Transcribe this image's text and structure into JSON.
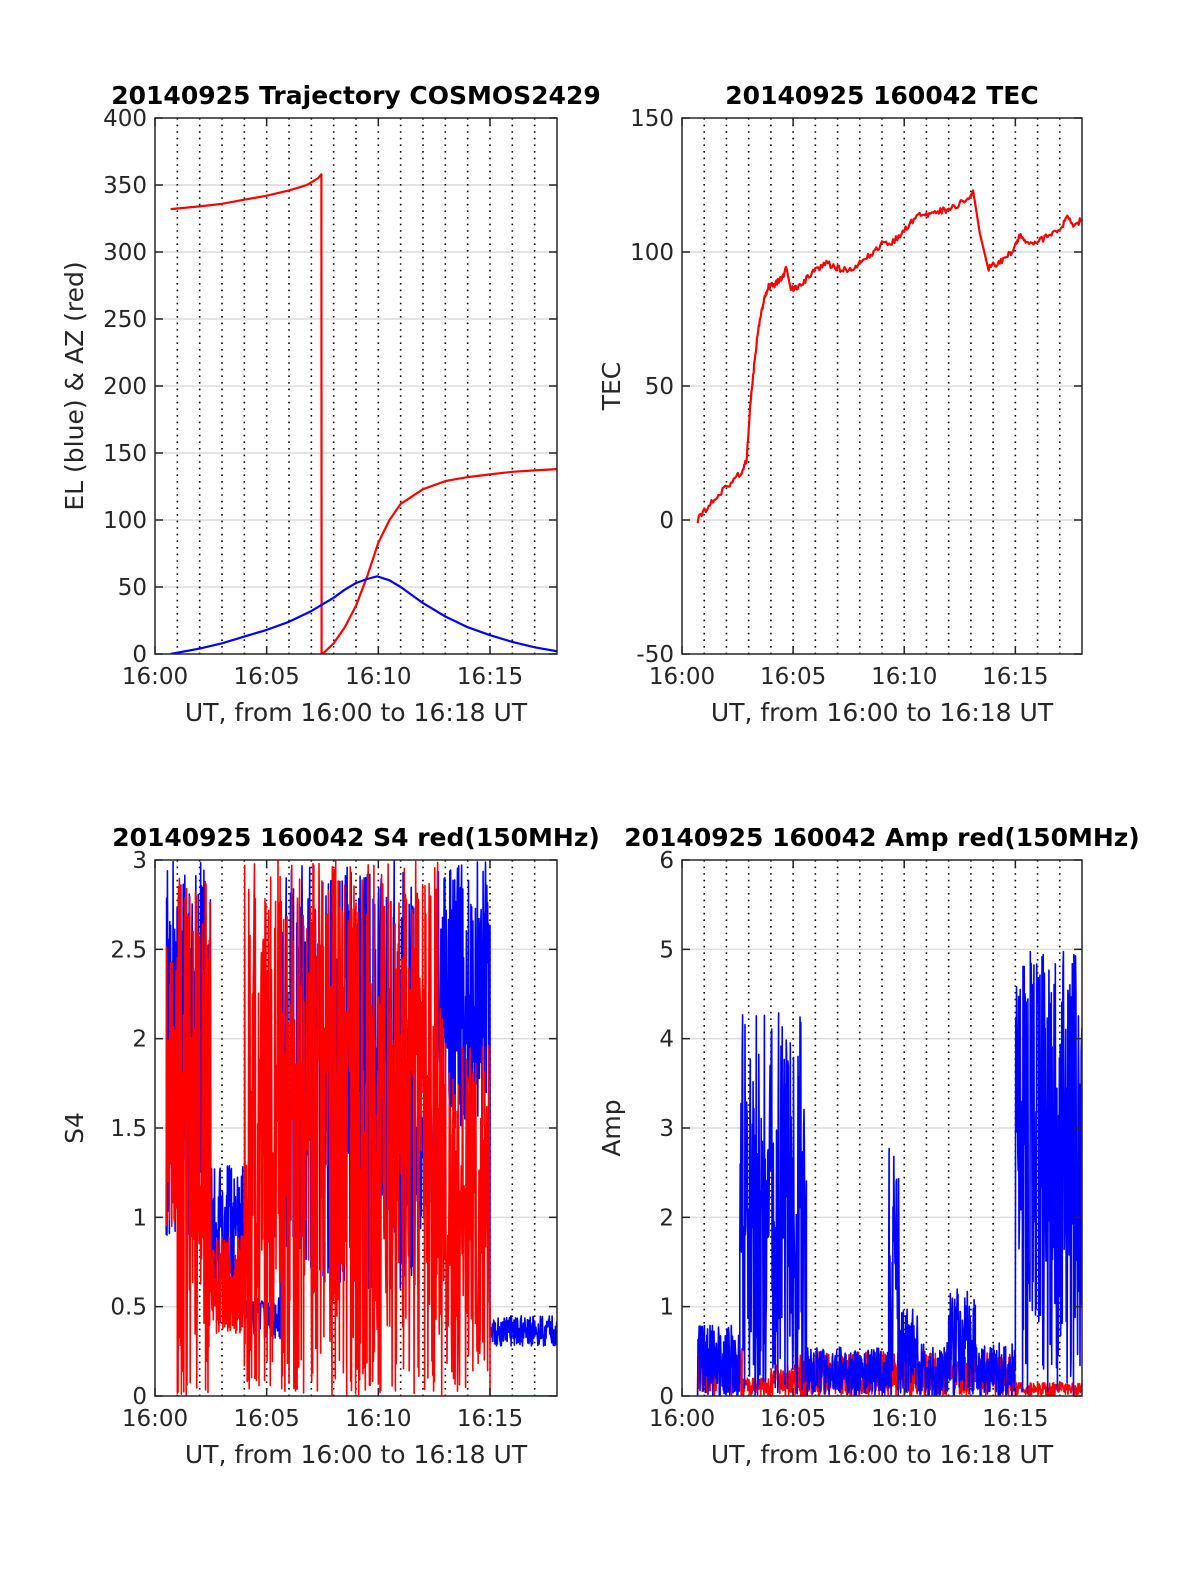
{
  "colors": {
    "red": "#ff0000",
    "blue": "#0000ff",
    "axis": "#262626",
    "grid": "#dcdcdc",
    "vgrid": "#000000"
  },
  "chart_data": [
    {
      "type": "line",
      "title": "20140925 Trajectory COSMOS2429",
      "xlabel": "UT, from 16:00 to 16:18 UT",
      "ylabel": "EL (blue) & AZ (red)",
      "xlim": [
        0,
        18
      ],
      "ylim": [
        0,
        400
      ],
      "xticks": [
        0,
        5,
        10,
        15
      ],
      "xticklabels": [
        "16:00",
        "16:05",
        "16:10",
        "16:15"
      ],
      "yticks": [
        0,
        50,
        100,
        150,
        200,
        250,
        300,
        350,
        400
      ],
      "yticklabels": [
        "0",
        "50",
        "100",
        "150",
        "200",
        "250",
        "300",
        "350",
        "400"
      ],
      "grid": true,
      "vgrid_minutes": [
        1,
        2,
        3,
        4,
        5,
        6,
        7,
        8,
        9,
        10,
        11,
        12,
        13,
        14,
        15,
        16,
        17
      ],
      "series": [
        {
          "color": "red",
          "x": [
            0.7,
            2,
            3,
            4,
            5,
            6,
            6.8,
            7.3,
            7.45,
            7.46,
            7.5,
            8,
            8.5,
            9,
            9.5,
            10,
            10.5,
            11,
            12,
            13,
            14,
            15,
            16,
            17,
            18
          ],
          "y": [
            332,
            334,
            336,
            339,
            342,
            346,
            350,
            355,
            358,
            0,
            0,
            8,
            20,
            36,
            58,
            83,
            100,
            112,
            123,
            129,
            132,
            134,
            136,
            137,
            138
          ]
        },
        {
          "color": "blue",
          "x": [
            0.7,
            2,
            3,
            4,
            5,
            6,
            7,
            8,
            8.5,
            9,
            9.5,
            9.95,
            10.5,
            11,
            11.5,
            12,
            13,
            14,
            15,
            16,
            17,
            18
          ],
          "y": [
            0,
            4,
            8,
            13,
            18,
            24,
            32,
            42,
            48,
            53,
            56,
            58,
            55,
            50,
            44,
            38,
            28,
            20,
            14,
            9,
            5,
            2
          ]
        }
      ]
    },
    {
      "type": "line",
      "title": "20140925 160042 TEC",
      "xlabel": "UT, from 16:00 to 16:18 UT",
      "ylabel": "TEC",
      "xlim": [
        0,
        18
      ],
      "ylim": [
        -50,
        150
      ],
      "xticks": [
        0,
        5,
        10,
        15
      ],
      "xticklabels": [
        "16:00",
        "16:05",
        "16:10",
        "16:15"
      ],
      "yticks": [
        -50,
        0,
        50,
        100,
        150
      ],
      "yticklabels": [
        "-50",
        "0",
        "50",
        "100",
        "150"
      ],
      "grid": true,
      "vgrid_minutes": [
        1,
        2,
        3,
        4,
        5,
        6,
        7,
        8,
        9,
        10,
        11,
        12,
        13,
        14,
        15,
        16,
        17
      ],
      "series": [
        {
          "color": "red",
          "noise": 1.2,
          "x": [
            0.7,
            1.2,
            1.7,
            2.2,
            2.7,
            2.9,
            3.1,
            3.3,
            3.5,
            3.7,
            3.9,
            4.2,
            4.5,
            4.7,
            4.9,
            5.2,
            5.6,
            6.0,
            6.5,
            7.0,
            7.5,
            8.0,
            8.5,
            9.0,
            9.5,
            10.0,
            10.5,
            11.0,
            11.5,
            12.0,
            12.5,
            12.9,
            13.1,
            13.4,
            13.8,
            14.2,
            14.6,
            15.0,
            15.2,
            15.5,
            16.0,
            16.5,
            17.0,
            17.3,
            17.6,
            18.0
          ],
          "y": [
            0,
            5,
            10,
            14,
            18,
            22,
            45,
            62,
            75,
            82,
            87,
            88,
            90,
            94,
            86,
            87,
            90,
            93,
            96,
            94,
            93,
            96,
            99,
            103,
            104,
            108,
            113,
            114,
            115,
            116,
            118,
            120,
            123,
            107,
            94,
            96,
            98,
            102,
            106,
            103,
            104,
            106,
            108,
            113,
            110,
            112
          ]
        }
      ]
    },
    {
      "type": "line",
      "title": "20140925 160042 S4 red(150MHz)",
      "xlabel": "UT, from 16:00 to 16:18 UT",
      "ylabel": "S4",
      "xlim": [
        0,
        18
      ],
      "ylim": [
        0,
        3
      ],
      "xticks": [
        0,
        5,
        10,
        15
      ],
      "xticklabels": [
        "16:00",
        "16:05",
        "16:10",
        "16:15"
      ],
      "yticks": [
        0,
        0.5,
        1,
        1.5,
        2,
        2.5,
        3
      ],
      "yticklabels": [
        "0",
        "0.5",
        "1",
        "1.5",
        "2",
        "2.5",
        "3"
      ],
      "grid": true,
      "vgrid_minutes": [
        1,
        2,
        3,
        4,
        5,
        6,
        7,
        8,
        9,
        10,
        11,
        12,
        13,
        14,
        15,
        16,
        17
      ],
      "series": [
        {
          "color": "blue",
          "noisy": true,
          "segments": [
            {
              "x0": 0.5,
              "x1": 2.5,
              "lo": 0.9,
              "hi": 3.0
            },
            {
              "x0": 2.5,
              "x1": 4.0,
              "lo": 0.55,
              "hi": 1.3
            },
            {
              "x0": 4.0,
              "x1": 5.6,
              "lo": 0.32,
              "hi": 0.55
            },
            {
              "x0": 5.6,
              "x1": 11.6,
              "lo": 0.6,
              "hi": 3.0
            },
            {
              "x0": 11.6,
              "x1": 12.6,
              "lo": 0.9,
              "hi": 1.6
            },
            {
              "x0": 12.6,
              "x1": 15.0,
              "lo": 1.5,
              "hi": 3.0
            },
            {
              "x0": 15.0,
              "x1": 18.0,
              "lo": 0.28,
              "hi": 0.45
            }
          ]
        },
        {
          "color": "red",
          "noisy": true,
          "segments": [
            {
              "x0": 0.5,
              "x1": 1.0,
              "lo": 0.95,
              "hi": 2.6
            },
            {
              "x0": 1.0,
              "x1": 2.5,
              "lo": 0.0,
              "hi": 3.0
            },
            {
              "x0": 2.5,
              "x1": 4.0,
              "lo": 0.35,
              "hi": 0.9
            },
            {
              "x0": 4.0,
              "x1": 13.0,
              "lo": 0.0,
              "hi": 3.0
            },
            {
              "x0": 13.0,
              "x1": 15.0,
              "lo": 0.0,
              "hi": 2.0
            },
            {
              "x0": 15.0,
              "x1": 18.0,
              "lo": 0.0,
              "hi": 0.0
            }
          ]
        }
      ]
    },
    {
      "type": "line",
      "title": "20140925 160042 Amp red(150MHz)",
      "xlabel": "UT, from 16:00 to 16:18 UT",
      "ylabel": "Amp",
      "xlim": [
        0,
        18
      ],
      "ylim": [
        0,
        6
      ],
      "xticks": [
        0,
        5,
        10,
        15
      ],
      "xticklabels": [
        "16:00",
        "16:05",
        "16:10",
        "16:15"
      ],
      "yticks": [
        0,
        1,
        2,
        3,
        4,
        5,
        6
      ],
      "yticklabels": [
        "0",
        "1",
        "2",
        "3",
        "4",
        "5",
        "6"
      ],
      "grid": true,
      "vgrid_minutes": [
        1,
        2,
        3,
        4,
        5,
        6,
        7,
        8,
        9,
        10,
        11,
        12,
        13,
        14,
        15,
        16,
        17
      ],
      "series": [
        {
          "color": "red",
          "noisy": true,
          "segments": [
            {
              "x0": 0.7,
              "x1": 2.7,
              "lo": 0.0,
              "hi": 0.6
            },
            {
              "x0": 2.7,
              "x1": 4.0,
              "lo": 0.0,
              "hi": 0.2
            },
            {
              "x0": 4.0,
              "x1": 5.2,
              "lo": 0.0,
              "hi": 0.35
            },
            {
              "x0": 5.2,
              "x1": 15.0,
              "lo": 0.0,
              "hi": 0.5
            },
            {
              "x0": 15.0,
              "x1": 18.0,
              "lo": 0.0,
              "hi": 0.15
            }
          ]
        },
        {
          "color": "blue",
          "noisy": true,
          "segments": [
            {
              "x0": 0.7,
              "x1": 2.6,
              "lo": 0.0,
              "hi": 0.8
            },
            {
              "x0": 2.6,
              "x1": 5.6,
              "lo": 0.0,
              "hi": 4.3
            },
            {
              "x0": 5.6,
              "x1": 9.3,
              "lo": 0.0,
              "hi": 0.55
            },
            {
              "x0": 9.3,
              "x1": 9.8,
              "lo": 0.0,
              "hi": 2.8
            },
            {
              "x0": 9.8,
              "x1": 10.6,
              "lo": 0.0,
              "hi": 1.0
            },
            {
              "x0": 10.6,
              "x1": 12.0,
              "lo": 0.0,
              "hi": 0.6
            },
            {
              "x0": 12.0,
              "x1": 13.2,
              "lo": 0.0,
              "hi": 1.2
            },
            {
              "x0": 13.2,
              "x1": 15.0,
              "lo": 0.0,
              "hi": 0.6
            },
            {
              "x0": 15.0,
              "x1": 18.0,
              "lo": 0.0,
              "hi": 5.0
            }
          ]
        }
      ]
    }
  ]
}
